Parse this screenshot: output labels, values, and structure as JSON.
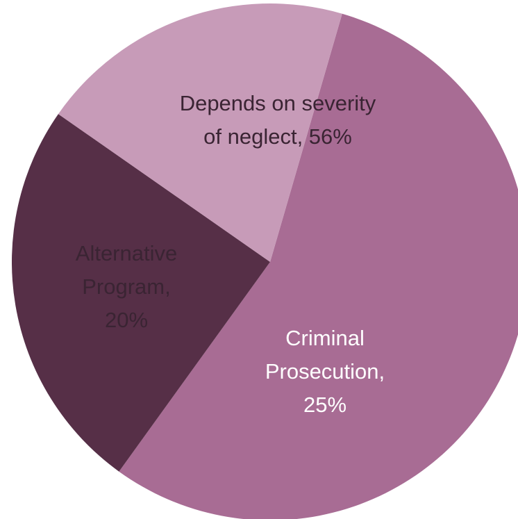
{
  "chart_data": {
    "type": "pie",
    "title": "",
    "slices": [
      {
        "category": "Depends on severity of neglect",
        "value": 56,
        "value_label": "56%",
        "label_lines": [
          "Depends on severity",
          "of neglect, 56%"
        ],
        "color": "#a86c94",
        "text_color": "#3a2433"
      },
      {
        "category": "Criminal Prosecution",
        "value": 25,
        "value_label": "25%",
        "label_lines": [
          "Criminal",
          "Prosecution,",
          "25%"
        ],
        "color": "#562f47",
        "text_color": "#ffffff"
      },
      {
        "category": "Alternative Program",
        "value": 20,
        "value_label": "20%",
        "label_lines": [
          "Alternative",
          "Program,",
          "20%"
        ],
        "color": "#c79bb8",
        "text_color": "#3a2433"
      }
    ]
  }
}
